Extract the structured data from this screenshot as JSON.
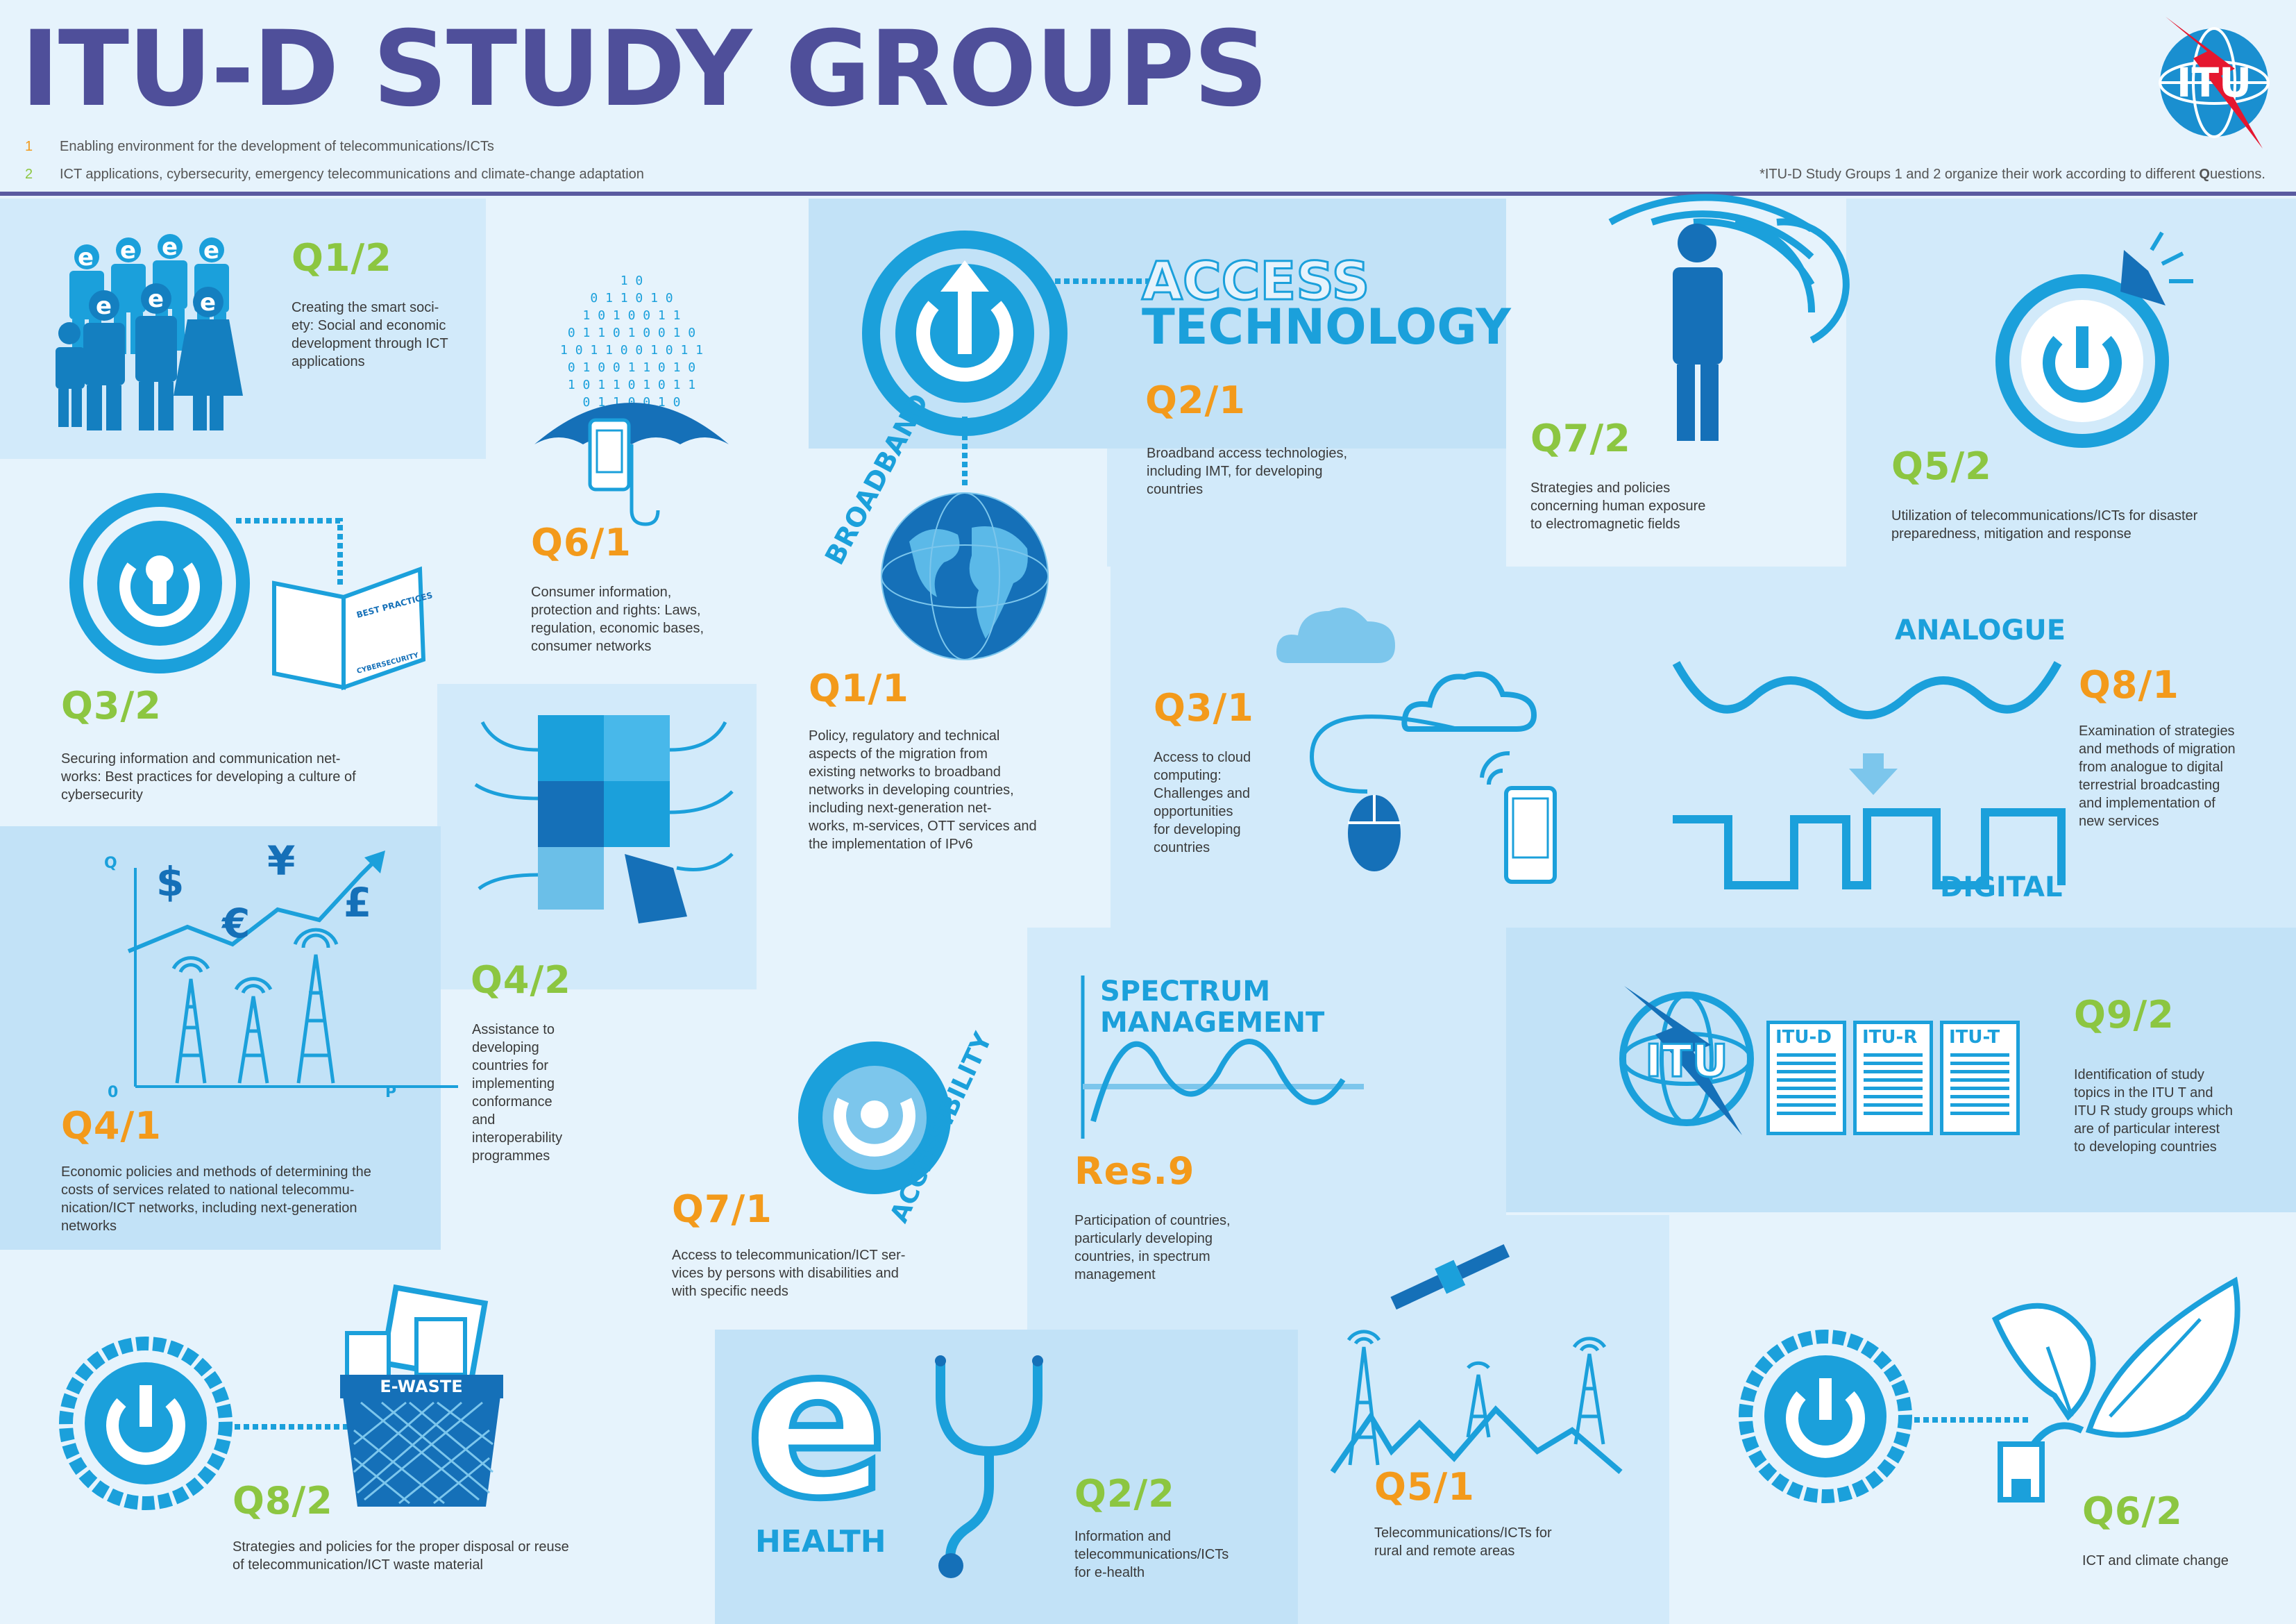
{
  "header": {
    "title": "ITU-D STUDY GROUPS",
    "sg1_number": "1",
    "sg1_text": "Enabling environment for the development of telecommunications/ICTs",
    "sg2_number": "2",
    "sg2_text": "ICT applications, cybersecurity, emergency telecommunications and climate-change adaptation",
    "footnote_prefix": "*ITU-D Study Groups 1 and 2 organize their work according to different ",
    "footnote_q": "Q",
    "footnote_suffix": "uestions.",
    "logo_text": "ITU"
  },
  "colors": {
    "title": "#4f4f9a",
    "accent_blue": "#1ba0db",
    "sg1_orange": "#f39a1b",
    "sg2_green": "#8cc641",
    "divider": "#5a5aa0"
  },
  "icon_texts": {
    "e_letter": "e",
    "best_practices": "BEST PRACTICES",
    "cybersecurity": "CYBERSECURITY",
    "binary": [
      "1 0",
      "0 1 1 0 1 0",
      "1 0 1 0 0 1 1",
      "0 1 1 0 1 0 0 1 0",
      "1 0 1 1 0 0 1 0 1 1",
      "0 1 0 0 1 1 0 1 0",
      "1 0 1 1 0 1 0 1 1",
      "0 1 1 0 0 1 0"
    ],
    "broadband": "BROADBAND",
    "access_technology_1": "ACCESS",
    "access_technology_2": "TECHNOLOGY",
    "analogue": "ANALOGUE",
    "digital": "DIGITAL",
    "spectrum_1": "SPECTRUM",
    "spectrum_2": "MANAGEMENT",
    "accessibility": "ACCESSIBILITY",
    "itu_d": "ITU-D",
    "itu_r": "ITU-R",
    "itu_t": "ITU-T",
    "e_waste": "E-WASTE",
    "health": "HEALTH",
    "axis_q": "Q",
    "axis_o": "0",
    "axis_p": "P",
    "dollar": "$",
    "yen": "¥",
    "euro": "€",
    "pound": "£"
  },
  "questions": {
    "q1_2": {
      "label": "Q1/2",
      "text": "Creating the smart soci-\nety: Social and economic\ndevelopment through ICT\napplications"
    },
    "q6_1": {
      "label": "Q6/1",
      "text": "Consumer information,\nprotection and rights: Laws,\nregulation, economic bases,\nconsumer networks"
    },
    "q2_1": {
      "label": "Q2/1",
      "text": "Broadband access technologies,\nincluding IMT, for developing\ncountries"
    },
    "q7_2": {
      "label": "Q7/2",
      "text": "Strategies and policies\nconcerning human exposure\nto electromagnetic fields"
    },
    "q5_2": {
      "label": "Q5/2",
      "text": "Utilization of telecommunications/ICTs for disaster\npreparedness, mitigation and response"
    },
    "q3_2": {
      "label": "Q3/2",
      "text": "Securing information and communication net-\nworks: Best practices for developing a culture of\ncybersecurity"
    },
    "q1_1": {
      "label": "Q1/1",
      "text": "Policy, regulatory and technical\naspects of the migration from\nexisting networks to broadband\nnetworks in developing countries,\nincluding next-generation net-\nworks, m-services, OTT services and\nthe implementation of IPv6"
    },
    "q3_1": {
      "label": "Q3/1",
      "text": "Access to cloud\ncomputing:\nChallenges and\nopportunities\nfor developing\ncountries"
    },
    "q8_1": {
      "label": "Q8/1",
      "text": "Examination of strategies\nand methods of migration\nfrom analogue to digital\nterrestrial broadcasting\nand implementation of\nnew services"
    },
    "q4_1": {
      "label": "Q4/1",
      "text": "Economic policies and methods of determining the\ncosts of services related to national telecommu-\nnication/ICT networks, including next-generation\nnetworks"
    },
    "q4_2": {
      "label": "Q4/2",
      "text": "Assistance to\ndeveloping\ncountries for\nimplementing\nconformance\nand\ninteroperability\nprogrammes"
    },
    "res9": {
      "label": "Res.9",
      "text": "Participation of countries,\nparticularly developing\ncountries, in spectrum\nmanagement"
    },
    "q9_2": {
      "label": "Q9/2",
      "text": "Identification of study\ntopics in the ITU T and\nITU R study groups which\nare of particular interest\nto developing countries"
    },
    "q7_1": {
      "label": "Q7/1",
      "text": "Access to telecommunication/ICT ser-\nvices by persons with disabilities and\nwith specific needs"
    },
    "q8_2": {
      "label": "Q8/2",
      "text": "Strategies and policies for the proper disposal or reuse\nof telecommunication/ICT waste material"
    },
    "q2_2": {
      "label": "Q2/2",
      "text": "Information and\ntelecommunications/ICTs\nfor e-health"
    },
    "q5_1": {
      "label": "Q5/1",
      "text": "Telecommunications/ICTs for\nrural and remote areas"
    },
    "q6_2": {
      "label": "Q6/2",
      "text": "ICT and climate change"
    }
  }
}
